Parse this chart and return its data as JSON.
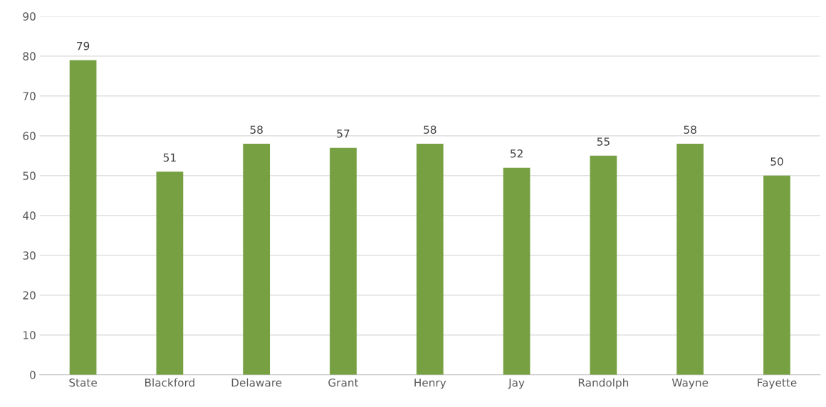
{
  "chart_data": {
    "type": "bar",
    "categories": [
      "State",
      "Blackford",
      "Delaware",
      "Grant",
      "Henry",
      "Jay",
      "Randolph",
      "Wayne",
      "Fayette"
    ],
    "values": [
      79,
      51,
      58,
      57,
      58,
      52,
      55,
      58,
      50
    ],
    "color": "#77a043",
    "ylim": [
      0,
      90
    ],
    "yticks": [
      0,
      10,
      20,
      30,
      40,
      50,
      60,
      70,
      80,
      90
    ],
    "grid": "y",
    "data_labels": true
  }
}
